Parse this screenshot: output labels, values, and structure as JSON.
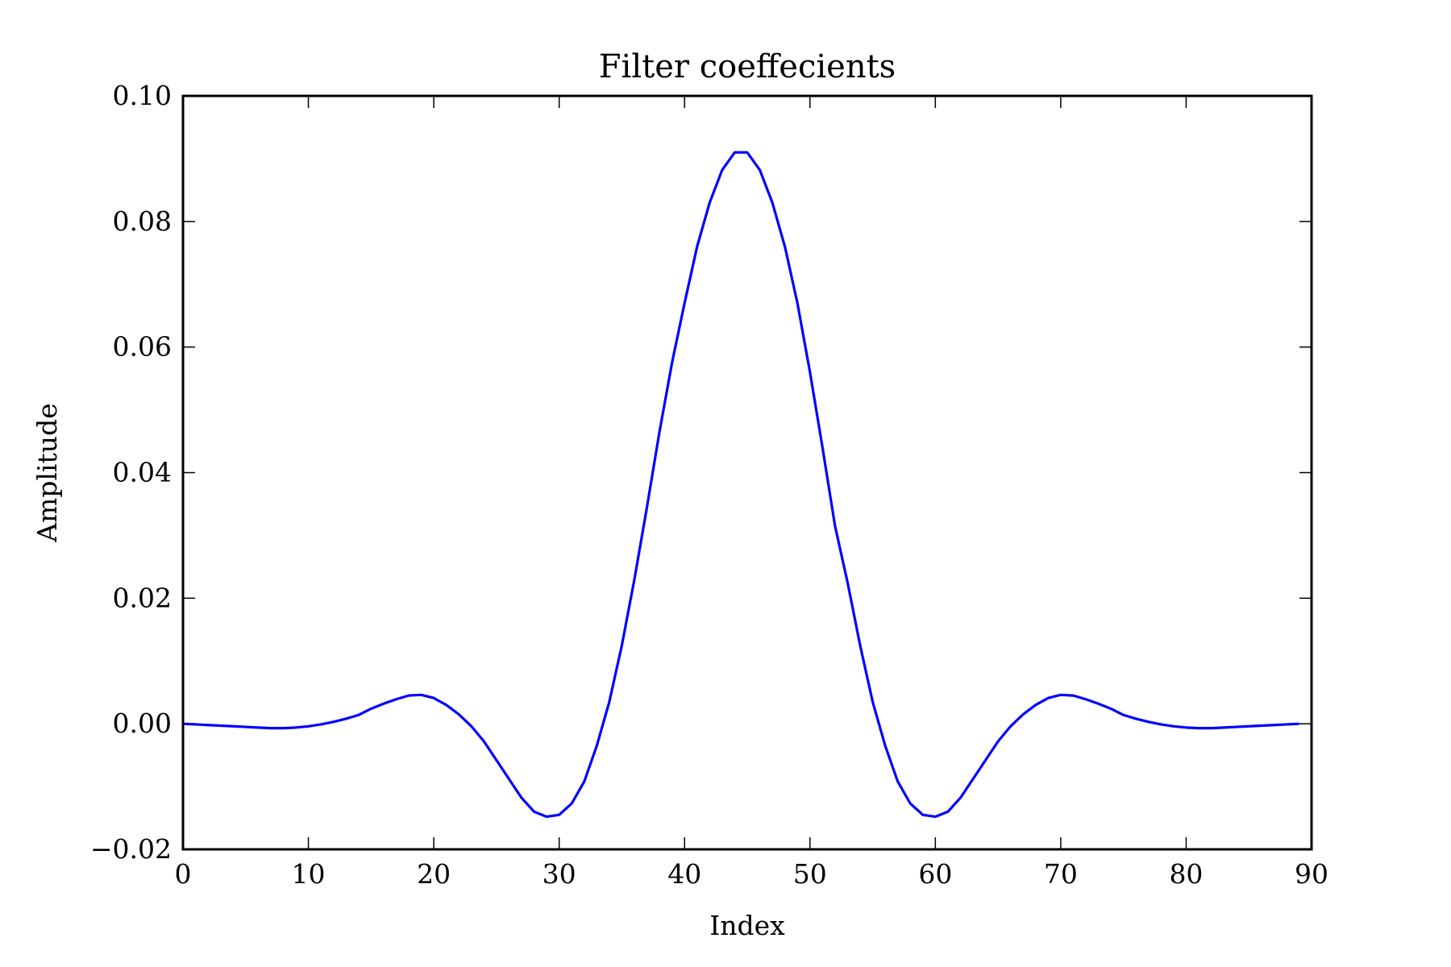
{
  "chart_data": {
    "type": "line",
    "title": "Filter coeffecients",
    "xlabel": "Index",
    "ylabel": "Amplitude",
    "xlim": [
      0,
      90
    ],
    "ylim": [
      -0.02,
      0.1
    ],
    "xticks": [
      0,
      10,
      20,
      30,
      40,
      50,
      60,
      70,
      80,
      90
    ],
    "xtick_labels": [
      "0",
      "10",
      "20",
      "30",
      "40",
      "50",
      "60",
      "70",
      "80",
      "90"
    ],
    "yticks": [
      -0.02,
      0.0,
      0.02,
      0.04,
      0.06,
      0.08,
      0.1
    ],
    "ytick_labels": [
      "−0.02",
      "0.00",
      "0.02",
      "0.04",
      "0.06",
      "0.08",
      "0.10"
    ],
    "grid": false,
    "series": [
      {
        "color": "#0000ff",
        "x": [
          0,
          1,
          2,
          3,
          4,
          5,
          6,
          7,
          8,
          9,
          10,
          11,
          12,
          13,
          14,
          15,
          16,
          17,
          18,
          19,
          20,
          21,
          22,
          23,
          24,
          25,
          26,
          27,
          28,
          29,
          30,
          31,
          32,
          33,
          34,
          35,
          36,
          37,
          38,
          39,
          40,
          41,
          42,
          43,
          44,
          45,
          46,
          47,
          48,
          49,
          50,
          51,
          52,
          53,
          54,
          55,
          56,
          57,
          58,
          59,
          60,
          61,
          62,
          63,
          64,
          65,
          66,
          67,
          68,
          69,
          70,
          71,
          72,
          73,
          74,
          75,
          76,
          77,
          78,
          79,
          80,
          81,
          82,
          83,
          84,
          85,
          86,
          87,
          88,
          89
        ],
        "y": [
          0.0,
          -0.0001,
          -0.0002,
          -0.0003,
          -0.0004,
          -0.0005,
          -0.0006,
          -0.0007,
          -0.0007,
          -0.0006,
          -0.0004,
          -0.0001,
          0.0003,
          0.0008,
          0.0014,
          0.0024,
          0.0032,
          0.0039,
          0.0045,
          0.0046,
          0.0041,
          0.003,
          0.0015,
          -0.0004,
          -0.0028,
          -0.0058,
          -0.0088,
          -0.0118,
          -0.014,
          -0.0148,
          -0.0145,
          -0.0127,
          -0.0092,
          -0.0035,
          0.0035,
          0.0125,
          0.023,
          0.0345,
          0.0465,
          0.0575,
          0.067,
          0.076,
          0.083,
          0.0882,
          0.091,
          0.091,
          0.0882,
          0.083,
          0.076,
          0.067,
          0.056,
          0.044,
          0.0315,
          0.0225,
          0.0125,
          0.0035,
          -0.0035,
          -0.0092,
          -0.0127,
          -0.0145,
          -0.0148,
          -0.014,
          -0.0118,
          -0.0088,
          -0.0058,
          -0.0028,
          -0.0004,
          0.0015,
          0.003,
          0.0041,
          0.0046,
          0.0045,
          0.0039,
          0.0032,
          0.0024,
          0.0014,
          0.0008,
          0.0003,
          -0.0001,
          -0.0004,
          -0.0006,
          -0.0007,
          -0.0007,
          -0.0006,
          -0.0005,
          -0.0004,
          -0.0003,
          -0.0002,
          -0.0001,
          0.0
        ]
      }
    ]
  }
}
